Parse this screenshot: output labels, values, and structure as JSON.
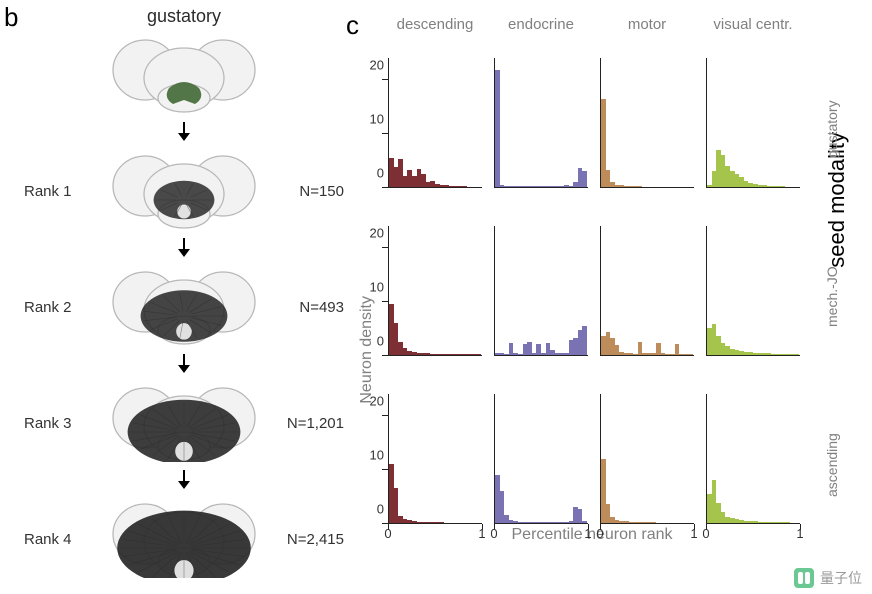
{
  "panel_b": {
    "label": "b",
    "title": "gustatory",
    "brain_outline_stroke": "#b8b8b8",
    "brain_outline_fill": "#f2f2f2",
    "seed_fill": "#456b3a",
    "neuron_fill": "#2a2a2a",
    "arrow_color": "#000000",
    "ranks": [
      {
        "rank_label": "",
        "n_label": "",
        "density": 0.0
      },
      {
        "rank_label": "Rank 1",
        "n_label": "N=150",
        "density": 0.2
      },
      {
        "rank_label": "Rank 2",
        "n_label": "N=493",
        "density": 0.45
      },
      {
        "rank_label": "Rank 3",
        "n_label": "N=1,201",
        "density": 0.7
      },
      {
        "rank_label": "Rank 4",
        "n_label": "N=2,415",
        "density": 0.9
      }
    ]
  },
  "panel_c": {
    "label": "c",
    "x_label": "Percentile neuron rank",
    "y_label": "Neuron density",
    "side_title": "seed modality",
    "y_max": 24,
    "y_ticks": [
      0,
      10,
      20
    ],
    "x_ticks": [
      0,
      1
    ],
    "col_headers": [
      "descending",
      "endocrine",
      "motor",
      "visual centr."
    ],
    "row_headers": [
      "gustatory",
      "mech.-JO",
      "ascending"
    ],
    "col_colors": [
      "#7d2f33",
      "#7a73b3",
      "#bd8c5a",
      "#a4c44b"
    ],
    "hist_bins": 20,
    "cells": [
      [
        [
          5.5,
          3.8,
          5.2,
          2.0,
          3.2,
          2.0,
          3.4,
          2.4,
          1.0,
          1.2,
          0.6,
          0.4,
          0.3,
          0.2,
          0.2,
          0.1,
          0.1,
          0.0,
          0.0,
          0.0
        ],
        [
          22,
          0.3,
          0.2,
          0.1,
          0.1,
          0.1,
          0.1,
          0.1,
          0.1,
          0.2,
          0.2,
          0.1,
          0.1,
          0.1,
          0.1,
          0.3,
          0.2,
          1.0,
          3.5,
          3.0
        ],
        [
          16.5,
          3.2,
          1.0,
          0.4,
          0.3,
          0.2,
          0.1,
          0.1,
          0.1,
          0.0,
          0.0,
          0.0,
          0.0,
          0.0,
          0.0,
          0.0,
          0.0,
          0.0,
          0.0,
          0.0
        ],
        [
          0.4,
          3.0,
          7.0,
          6.0,
          4.0,
          3.0,
          2.4,
          1.8,
          1.2,
          0.8,
          0.6,
          0.4,
          0.3,
          0.2,
          0.2,
          0.1,
          0.1,
          0.0,
          0.0,
          0.0
        ]
      ],
      [
        [
          9.5,
          6.0,
          2.5,
          1.4,
          0.8,
          0.5,
          0.4,
          0.3,
          0.3,
          0.2,
          0.2,
          0.2,
          0.2,
          0.2,
          0.2,
          0.2,
          0.2,
          0.1,
          0.1,
          0.1
        ],
        [
          0.4,
          0.3,
          0.2,
          2.2,
          0.3,
          0.2,
          2.0,
          2.4,
          0.3,
          2.0,
          0.3,
          2.2,
          1.0,
          0.3,
          0.3,
          0.3,
          2.8,
          3.2,
          4.6,
          5.4
        ],
        [
          3.6,
          4.4,
          3.2,
          1.8,
          0.6,
          0.4,
          0.3,
          0.2,
          2.4,
          0.4,
          0.4,
          0.3,
          2.2,
          0.3,
          0.2,
          0.2,
          2.0,
          0.2,
          0.2,
          0.2
        ],
        [
          5.0,
          5.8,
          3.6,
          2.2,
          1.6,
          1.2,
          1.0,
          0.8,
          0.6,
          0.5,
          0.4,
          0.4,
          0.3,
          0.3,
          0.2,
          0.2,
          0.2,
          0.2,
          0.2,
          0.2
        ]
      ],
      [
        [
          11,
          6.5,
          1.4,
          0.8,
          0.5,
          0.3,
          0.2,
          0.2,
          0.1,
          0.1,
          0.1,
          0.1,
          0.0,
          0.0,
          0.0,
          0.0,
          0.0,
          0.0,
          0.0,
          0.0
        ],
        [
          9.0,
          6.0,
          1.5,
          0.5,
          0.3,
          0.2,
          0.1,
          0.1,
          0.1,
          0.1,
          0.1,
          0.1,
          0.1,
          0.1,
          0.1,
          0.2,
          0.3,
          3.0,
          2.6,
          0.3
        ],
        [
          12,
          3.5,
          1.2,
          0.6,
          0.4,
          0.3,
          0.2,
          0.2,
          0.1,
          0.1,
          0.1,
          0.1,
          0.0,
          0.0,
          0.0,
          0.0,
          0.0,
          0.0,
          0.0,
          0.0
        ],
        [
          5.4,
          8.0,
          3.8,
          2.0,
          1.2,
          0.9,
          0.7,
          0.5,
          0.4,
          0.3,
          0.3,
          0.2,
          0.2,
          0.2,
          0.1,
          0.1,
          0.1,
          0.1,
          0.0,
          0.0
        ]
      ]
    ]
  },
  "watermark": {
    "text": "量子位"
  },
  "style": {
    "label_fontsize": 26,
    "title_fontsize": 18,
    "axis_label_fontsize": 16,
    "tick_fontsize": 13,
    "header_color": "#808080"
  }
}
